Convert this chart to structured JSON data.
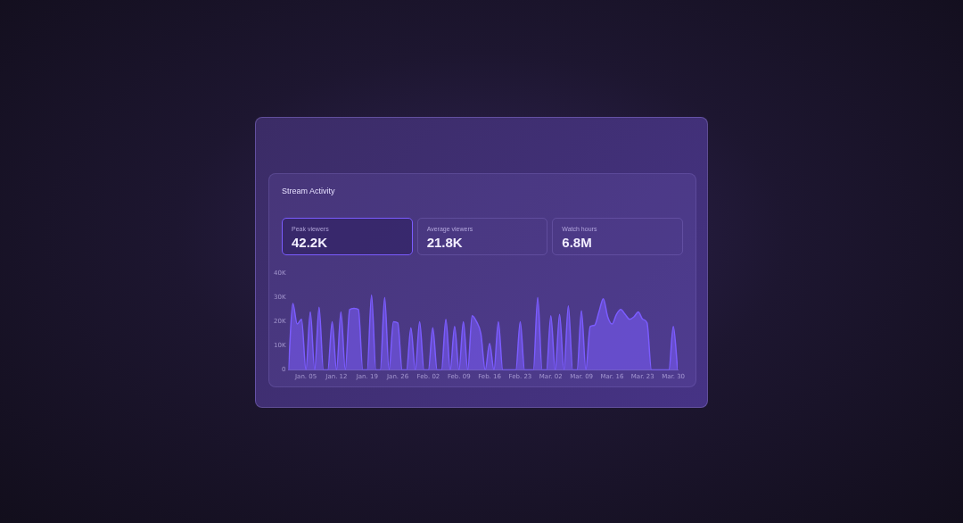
{
  "chart_data": {
    "type": "area",
    "title": "Stream Activity",
    "annotations": [
      "Peak viewers",
      "42.2K",
      "Average viewers",
      "21.8K",
      "Watch hours",
      "6.8M"
    ],
    "x": [
      "--01-01",
      "--01-02",
      "--01-03",
      "--01-04",
      "--01-05",
      "--01-06",
      "--01-07",
      "--01-08",
      "--01-09",
      "--01-10",
      "--01-11",
      "--01-12",
      "--01-13",
      "--01-14",
      "--01-15",
      "--01-16",
      "--01-17",
      "--01-18",
      "--01-19",
      "--01-20",
      "--01-21",
      "--01-22",
      "--01-23",
      "--01-24",
      "--01-25",
      "--01-26",
      "--01-27",
      "--01-28",
      "--01-29",
      "--01-30",
      "--01-31",
      "--02-01",
      "--02-02",
      "--02-03",
      "--02-04",
      "--02-05",
      "--02-06",
      "--02-07",
      "--02-08",
      "--02-09",
      "--02-10",
      "--02-11",
      "--02-12",
      "--02-13",
      "--02-14",
      "--02-15",
      "--02-16",
      "--02-17",
      "--02-18",
      "--02-19",
      "--02-20",
      "--02-21",
      "--02-22",
      "--02-23",
      "--02-24",
      "--02-25",
      "--02-26",
      "--02-27",
      "--02-28",
      "--03-01",
      "--03-02",
      "--03-03",
      "--03-04",
      "--03-05",
      "--03-06",
      "--03-07",
      "--03-08",
      "--03-09",
      "--03-10",
      "--03-11",
      "--03-12",
      "--03-13",
      "--03-14",
      "--03-15",
      "--03-16",
      "--03-17",
      "--03-18",
      "--03-19",
      "--03-20",
      "--03-21",
      "--03-22",
      "--03-23",
      "--03-24",
      "--03-25",
      "--03-26",
      "--03-27",
      "--03-28",
      "--03-29",
      "--03-30",
      "--03-31"
    ],
    "series": [
      {
        "color": "#7b5cff",
        "values": [
          0,
          27500,
          19000,
          21000,
          0,
          24000,
          0,
          26000,
          0,
          0,
          20000,
          0,
          24000,
          0,
          25000,
          25500,
          25000,
          0,
          0,
          31000,
          0,
          0,
          30000,
          0,
          20000,
          19500,
          0,
          0,
          17500,
          0,
          20000,
          0,
          0,
          17500,
          0,
          0,
          21000,
          0,
          18000,
          0,
          20000,
          0,
          22500,
          20000,
          15000,
          0,
          11000,
          0,
          20000,
          0,
          0,
          0,
          0,
          20000,
          0,
          0,
          0,
          30000,
          0,
          0,
          22500,
          0,
          23000,
          0,
          26500,
          0,
          0,
          24500,
          0,
          18000,
          18500,
          24000,
          29500,
          22000,
          19000,
          23000,
          25000,
          23000,
          21000,
          22000,
          24000,
          21000,
          19500,
          0,
          0,
          0,
          0,
          0,
          18000,
          0
        ]
      }
    ],
    "xlim": [
      "--01-01",
      "--03-31"
    ],
    "xticks": [
      {
        "value": "--01-05",
        "label": "Jan. 05"
      },
      {
        "value": "--01-12",
        "label": "Jan. 12"
      },
      {
        "value": "--01-19",
        "label": "Jan. 19"
      },
      {
        "value": "--01-26",
        "label": "Jan. 26"
      },
      {
        "value": "--02-02",
        "label": "Feb. 02"
      },
      {
        "value": "--02-09",
        "label": "Feb. 09"
      },
      {
        "value": "--02-16",
        "label": "Feb. 16"
      },
      {
        "value": "--02-23",
        "label": "Feb. 23"
      },
      {
        "value": "--03-02",
        "label": "Mar. 02"
      },
      {
        "value": "--03-09",
        "label": "Mar. 09"
      },
      {
        "value": "--03-16",
        "label": "Mar. 16"
      },
      {
        "value": "--03-23",
        "label": "Mar. 23"
      },
      {
        "value": "--03-30",
        "label": "Mar. 30"
      }
    ],
    "ylim": [
      0,
      40000
    ],
    "yticks": [
      0,
      {
        "value": 10000,
        "label": "10K"
      },
      {
        "value": 20000,
        "label": "20K"
      },
      {
        "value": 30000,
        "label": "30K"
      },
      {
        "value": 40000,
        "label": "40K"
      }
    ],
    "grid": false,
    "legend": false
  }
}
